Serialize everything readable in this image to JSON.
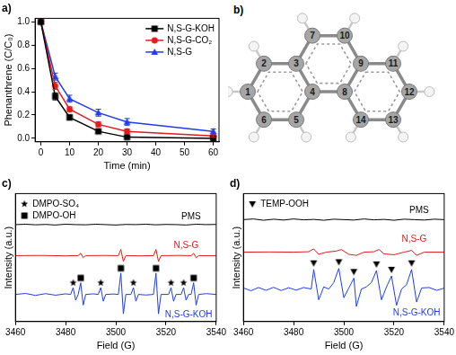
{
  "chart_data": [
    {
      "type": "line",
      "title": "a)",
      "x_label": "Time (min)",
      "y_label": "Phenanthrene (C/C₀)",
      "x": [
        0,
        5,
        10,
        20,
        30,
        60
      ],
      "series": [
        {
          "name": "N,S-G-KOH",
          "color": "#000000",
          "marker": "square",
          "values": [
            1.0,
            0.36,
            0.18,
            0.06,
            0.01,
            0.0
          ],
          "errors": [
            0,
            0.03,
            0.02,
            0.01,
            0.01,
            0.01
          ]
        },
        {
          "name": "N,S-G-CO₂",
          "color": "#e41a1c",
          "marker": "circle",
          "values": [
            1.0,
            0.45,
            0.25,
            0.12,
            0.06,
            0.02
          ],
          "errors": [
            0,
            0.03,
            0.02,
            0.02,
            0.02,
            0.01
          ]
        },
        {
          "name": "N,S-G",
          "color": "#1f3cf0",
          "marker": "triangle",
          "values": [
            1.0,
            0.53,
            0.34,
            0.22,
            0.14,
            0.06
          ],
          "errors": [
            0,
            0.03,
            0.03,
            0.03,
            0.03,
            0.02
          ]
        }
      ],
      "xlim": [
        -2,
        62
      ],
      "xticks": [
        0,
        10,
        20,
        30,
        40,
        50,
        60
      ],
      "ylim": [
        -0.03,
        1.03
      ],
      "yticks": [
        {
          "value": 0,
          "label": "0.0"
        },
        {
          "value": 0.2,
          "label": "0.2"
        },
        {
          "value": 0.4,
          "label": "0.4"
        },
        {
          "value": 0.6,
          "label": "0.6"
        },
        {
          "value": 0.8,
          "label": "0.8"
        },
        {
          "value": 1,
          "label": "1.0"
        }
      ],
      "grid": false,
      "legend": "upper right"
    },
    {
      "type": "line",
      "title": "c)",
      "x_label": "Field (G)",
      "y_label": "Intensity (a.u.)",
      "tick_labels": "x",
      "xlim": [
        3460,
        3540
      ],
      "xticks": [
        3460,
        3480,
        3500,
        3520,
        3540
      ],
      "ylim": [
        -1.4,
        5.2
      ],
      "grid": false,
      "legend": "upper left",
      "series": [
        {
          "type": "line",
          "color": "#000000",
          "x": [
            3460,
            3464,
            3468,
            3472,
            3476,
            3480,
            3484,
            3488,
            3492,
            3496,
            3500,
            3504,
            3508,
            3512,
            3516,
            3520,
            3524,
            3528,
            3532,
            3536,
            3540
          ],
          "values": [
            3.6,
            3.62,
            3.59,
            3.61,
            3.58,
            3.62,
            3.6,
            3.59,
            3.62,
            3.6,
            3.58,
            3.61,
            3.6,
            3.62,
            3.59,
            3.61,
            3.6,
            3.58,
            3.62,
            3.6,
            3.61
          ]
        },
        {
          "type": "line",
          "color": "#e41a1c",
          "x": [
            3460,
            3470,
            3480,
            3485,
            3486,
            3487,
            3488,
            3495,
            3501,
            3502,
            3503,
            3504,
            3510,
            3515,
            3516,
            3517,
            3518,
            3525,
            3530,
            3531,
            3532,
            3533,
            3540
          ],
          "values": [
            2.0,
            2.01,
            1.99,
            2.0,
            2.12,
            1.9,
            2.0,
            2.01,
            2.0,
            2.32,
            1.7,
            2.0,
            1.99,
            2.0,
            2.32,
            1.7,
            2.0,
            2.01,
            2.0,
            2.12,
            1.9,
            2.0,
            2.0
          ]
        },
        {
          "type": "line",
          "color": "#1f3cf0",
          "x": [
            3460,
            3464,
            3468,
            3472,
            3476,
            3480,
            3482,
            3483,
            3484,
            3485,
            3486,
            3487,
            3488,
            3491,
            3493,
            3494,
            3495,
            3496,
            3499,
            3501,
            3502,
            3503,
            3504,
            3506,
            3507,
            3508,
            3509,
            3512,
            3515,
            3516,
            3517,
            3518,
            3521,
            3522,
            3523,
            3524,
            3526,
            3527,
            3528,
            3529,
            3530,
            3531,
            3532,
            3533,
            3536,
            3540
          ],
          "values": [
            0,
            0.05,
            -0.05,
            0.04,
            -0.04,
            0.03,
            0,
            0.35,
            -0.3,
            0,
            0.6,
            -0.55,
            0,
            0.03,
            0,
            0.35,
            -0.35,
            0,
            0.02,
            0,
            1.1,
            -1.0,
            0,
            0,
            0.35,
            -0.35,
            0,
            -0.03,
            0,
            1.1,
            -1.0,
            0,
            0,
            0.35,
            -0.35,
            0,
            0,
            0.35,
            -0.3,
            0,
            0,
            0.6,
            -0.55,
            0,
            0.04,
            0
          ]
        },
        {
          "name": "DMPO-SO₄",
          "type": "scatter",
          "marker": "star",
          "color": "#000000",
          "x": [
            3483,
            3494,
            3507,
            3522,
            3527
          ],
          "values": [
            0.6,
            0.6,
            0.6,
            0.6,
            0.6
          ]
        },
        {
          "name": "DMPO-OH",
          "type": "scatter",
          "marker": "square",
          "color": "#000000",
          "x": [
            3486,
            3502,
            3516,
            3531
          ],
          "values": [
            0.85,
            1.35,
            1.35,
            0.85
          ]
        }
      ],
      "annotations": [
        {
          "text": "PMS",
          "x": 3530,
          "y": 4.0,
          "color": "#000000"
        },
        {
          "text": "N,S-G",
          "x": 3528,
          "y": 2.5,
          "color": "#e41a1c"
        },
        {
          "text": "N,S-G-KOH",
          "x": 3529,
          "y": -1.05,
          "color": "#1f3cf0"
        }
      ]
    },
    {
      "type": "line",
      "title": "d)",
      "x_label": "Field (G)",
      "y_label": "Intensity (a.u.)",
      "tick_labels": "x",
      "xlim": [
        3460,
        3540
      ],
      "xticks": [
        3460,
        3480,
        3500,
        3520,
        3540
      ],
      "ylim": [
        -1.5,
        4.4
      ],
      "grid": false,
      "legend": "upper left",
      "series": [
        {
          "type": "line",
          "color": "#000000",
          "x": [
            3460,
            3464,
            3468,
            3472,
            3476,
            3480,
            3484,
            3488,
            3492,
            3496,
            3500,
            3504,
            3508,
            3512,
            3516,
            3520,
            3524,
            3528,
            3532,
            3536,
            3540
          ],
          "values": [
            3.2,
            3.23,
            3.17,
            3.22,
            3.18,
            3.23,
            3.19,
            3.21,
            3.17,
            3.22,
            3.2,
            3.18,
            3.23,
            3.19,
            3.21,
            3.17,
            3.22,
            3.2,
            3.18,
            3.22,
            3.2
          ]
        },
        {
          "type": "line",
          "color": "#e41a1c",
          "x": [
            3460,
            3470,
            3480,
            3486,
            3488,
            3490,
            3493,
            3497,
            3499,
            3502,
            3505,
            3508,
            3512,
            3514,
            3516,
            3520,
            3524,
            3527,
            3529,
            3532,
            3540
          ],
          "values": [
            1.7,
            1.71,
            1.7,
            1.72,
            1.85,
            1.6,
            1.7,
            1.75,
            1.82,
            1.6,
            1.55,
            1.7,
            1.72,
            1.82,
            1.62,
            1.58,
            1.7,
            1.78,
            1.55,
            1.7,
            1.7
          ]
        },
        {
          "type": "line",
          "color": "#1f3cf0",
          "x": [
            3460,
            3463,
            3466,
            3469,
            3472,
            3475,
            3478,
            3481,
            3484,
            3487,
            3488,
            3490,
            3492,
            3494,
            3496,
            3498,
            3500,
            3502,
            3504,
            3505,
            3507,
            3509,
            3511,
            3513,
            3515,
            3517,
            3519,
            3521,
            3523,
            3525,
            3527,
            3529,
            3531,
            3534,
            3537,
            3540
          ],
          "values": [
            0.05,
            -0.08,
            0.07,
            -0.06,
            0.08,
            -0.07,
            0.06,
            -0.05,
            0.07,
            0,
            0.9,
            -0.5,
            0.1,
            0,
            0.3,
            0.95,
            -0.4,
            0.05,
            0.5,
            -0.8,
            0,
            0.1,
            0.3,
            0.85,
            -0.5,
            0.1,
            0.6,
            -0.75,
            0,
            0.2,
            0.9,
            -0.6,
            0.05,
            0.07,
            -0.06,
            0.04
          ]
        },
        {
          "name": "TEMP-OOH",
          "type": "scatter",
          "marker": "triangle-down",
          "color": "#000000",
          "x": [
            3488,
            3498,
            3504,
            3513,
            3519,
            3527
          ],
          "values": [
            1.2,
            1.25,
            0.8,
            1.15,
            0.9,
            1.2
          ]
        }
      ],
      "annotations": [
        {
          "text": "PMS",
          "x": 3530,
          "y": 3.6,
          "color": "#000000"
        },
        {
          "text": "N,S-G",
          "x": 3528,
          "y": 2.3,
          "color": "#e41a1c"
        },
        {
          "text": "N,S-G-KOH",
          "x": 3529,
          "y": -1.1,
          "color": "#1f3cf0"
        }
      ]
    }
  ],
  "molecule": {
    "title": "b)",
    "atom_labels": [
      "1",
      "2",
      "3",
      "4",
      "5",
      "6",
      "7",
      "8",
      "9",
      "10",
      "11",
      "12",
      "13",
      "14"
    ]
  }
}
